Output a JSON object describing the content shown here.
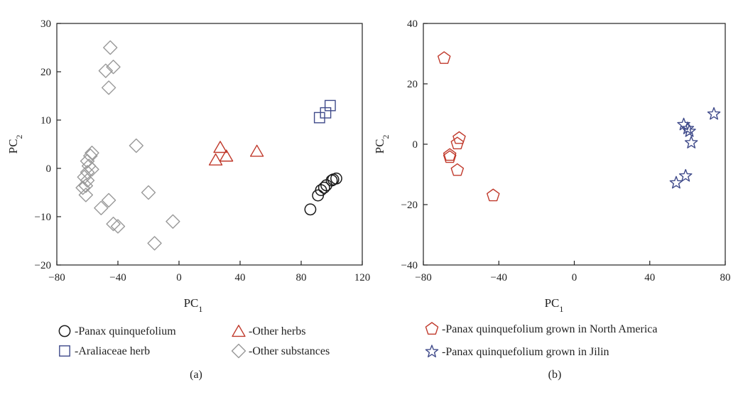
{
  "chart_data": [
    {
      "type": "scatter",
      "panel_label": "(a)",
      "xlabel": "PC",
      "xlabel_sub": "1",
      "ylabel": "PC",
      "ylabel_sub": "2",
      "xlim": [
        -80,
        120
      ],
      "ylim": [
        -20,
        30
      ],
      "xticks": [
        "−80",
        "−40",
        "0",
        "40",
        "80",
        "120"
      ],
      "yticks": [
        "−20",
        "−10",
        "0",
        "10",
        "20",
        "30"
      ],
      "xtick_values": [
        -80,
        -40,
        0,
        40,
        80,
        120
      ],
      "ytick_values": [
        -20,
        -10,
        0,
        10,
        20,
        30
      ],
      "series": [
        {
          "name": "-Panax quinquefolium",
          "marker": "circle",
          "color": "#1a1a1a",
          "points": [
            [
              86,
              -8.5
            ],
            [
              91,
              -5.6
            ],
            [
              93,
              -4.5
            ],
            [
              95,
              -4.0
            ],
            [
              96.5,
              -3.5
            ],
            [
              100,
              -2.5
            ],
            [
              101,
              -2.3
            ],
            [
              103,
              -2.1
            ]
          ]
        },
        {
          "name": "-Araliaceae herb",
          "marker": "square",
          "color": "#3f4a8a",
          "points": [
            [
              92,
              10.5
            ],
            [
              96,
              11.5
            ],
            [
              99,
              13.0
            ]
          ]
        },
        {
          "name": "-Other herbs",
          "marker": "triangle",
          "color": "#c0392b",
          "points": [
            [
              24,
              1.8
            ],
            [
              27,
              4.4
            ],
            [
              31,
              2.6
            ],
            [
              51,
              3.6
            ]
          ]
        },
        {
          "name": "-Other substances",
          "marker": "diamond",
          "color": "#999999",
          "points": [
            [
              -45,
              25.0
            ],
            [
              -48,
              20.2
            ],
            [
              -43,
              21.0
            ],
            [
              -46,
              16.7
            ],
            [
              -28,
              4.7
            ],
            [
              -57,
              3.2
            ],
            [
              -58,
              2.6
            ],
            [
              -60,
              1.5
            ],
            [
              -59,
              0.5
            ],
            [
              -57,
              -0.2
            ],
            [
              -60,
              -0.8
            ],
            [
              -62,
              -1.8
            ],
            [
              -60,
              -2.5
            ],
            [
              -61,
              -3.6
            ],
            [
              -63,
              -4.0
            ],
            [
              -61,
              -5.5
            ],
            [
              -46,
              -6.6
            ],
            [
              -51,
              -8.2
            ],
            [
              -20,
              -5.0
            ],
            [
              -43,
              -11.5
            ],
            [
              -40,
              -12.0
            ],
            [
              -4,
              -11.0
            ],
            [
              -16,
              -15.5
            ]
          ]
        }
      ]
    },
    {
      "type": "scatter",
      "panel_label": "(b)",
      "xlabel": "PC",
      "xlabel_sub": "1",
      "ylabel": "PC",
      "ylabel_sub": "2",
      "xlim": [
        -80,
        80
      ],
      "ylim": [
        -40,
        40
      ],
      "xticks": [
        "−80",
        "−40",
        "0",
        "40",
        "80"
      ],
      "yticks": [
        "−40",
        "−20",
        "0",
        "20",
        "40"
      ],
      "xtick_values": [
        -80,
        -40,
        0,
        40,
        80
      ],
      "ytick_values": [
        -40,
        -20,
        0,
        20,
        40
      ],
      "series": [
        {
          "name": "-Panax quinquefolium grown in North America",
          "marker": "pentagon",
          "color": "#c0392b",
          "points": [
            [
              -69,
              28.5
            ],
            [
              -61,
              2.0
            ],
            [
              -62,
              0.2
            ],
            [
              -66,
              -3.6
            ],
            [
              -66,
              -4.3
            ],
            [
              -62,
              -8.6
            ],
            [
              -43,
              -17.0
            ]
          ]
        },
        {
          "name": "-Panax quinquefolium grown in Jilin",
          "marker": "star",
          "color": "#3f4a8a",
          "points": [
            [
              74,
              10.0
            ],
            [
              58,
              6.5
            ],
            [
              60,
              5.2
            ],
            [
              61,
              4.3
            ],
            [
              62,
              0.5
            ],
            [
              59,
              -10.5
            ],
            [
              54,
              -12.8
            ]
          ]
        }
      ]
    }
  ]
}
